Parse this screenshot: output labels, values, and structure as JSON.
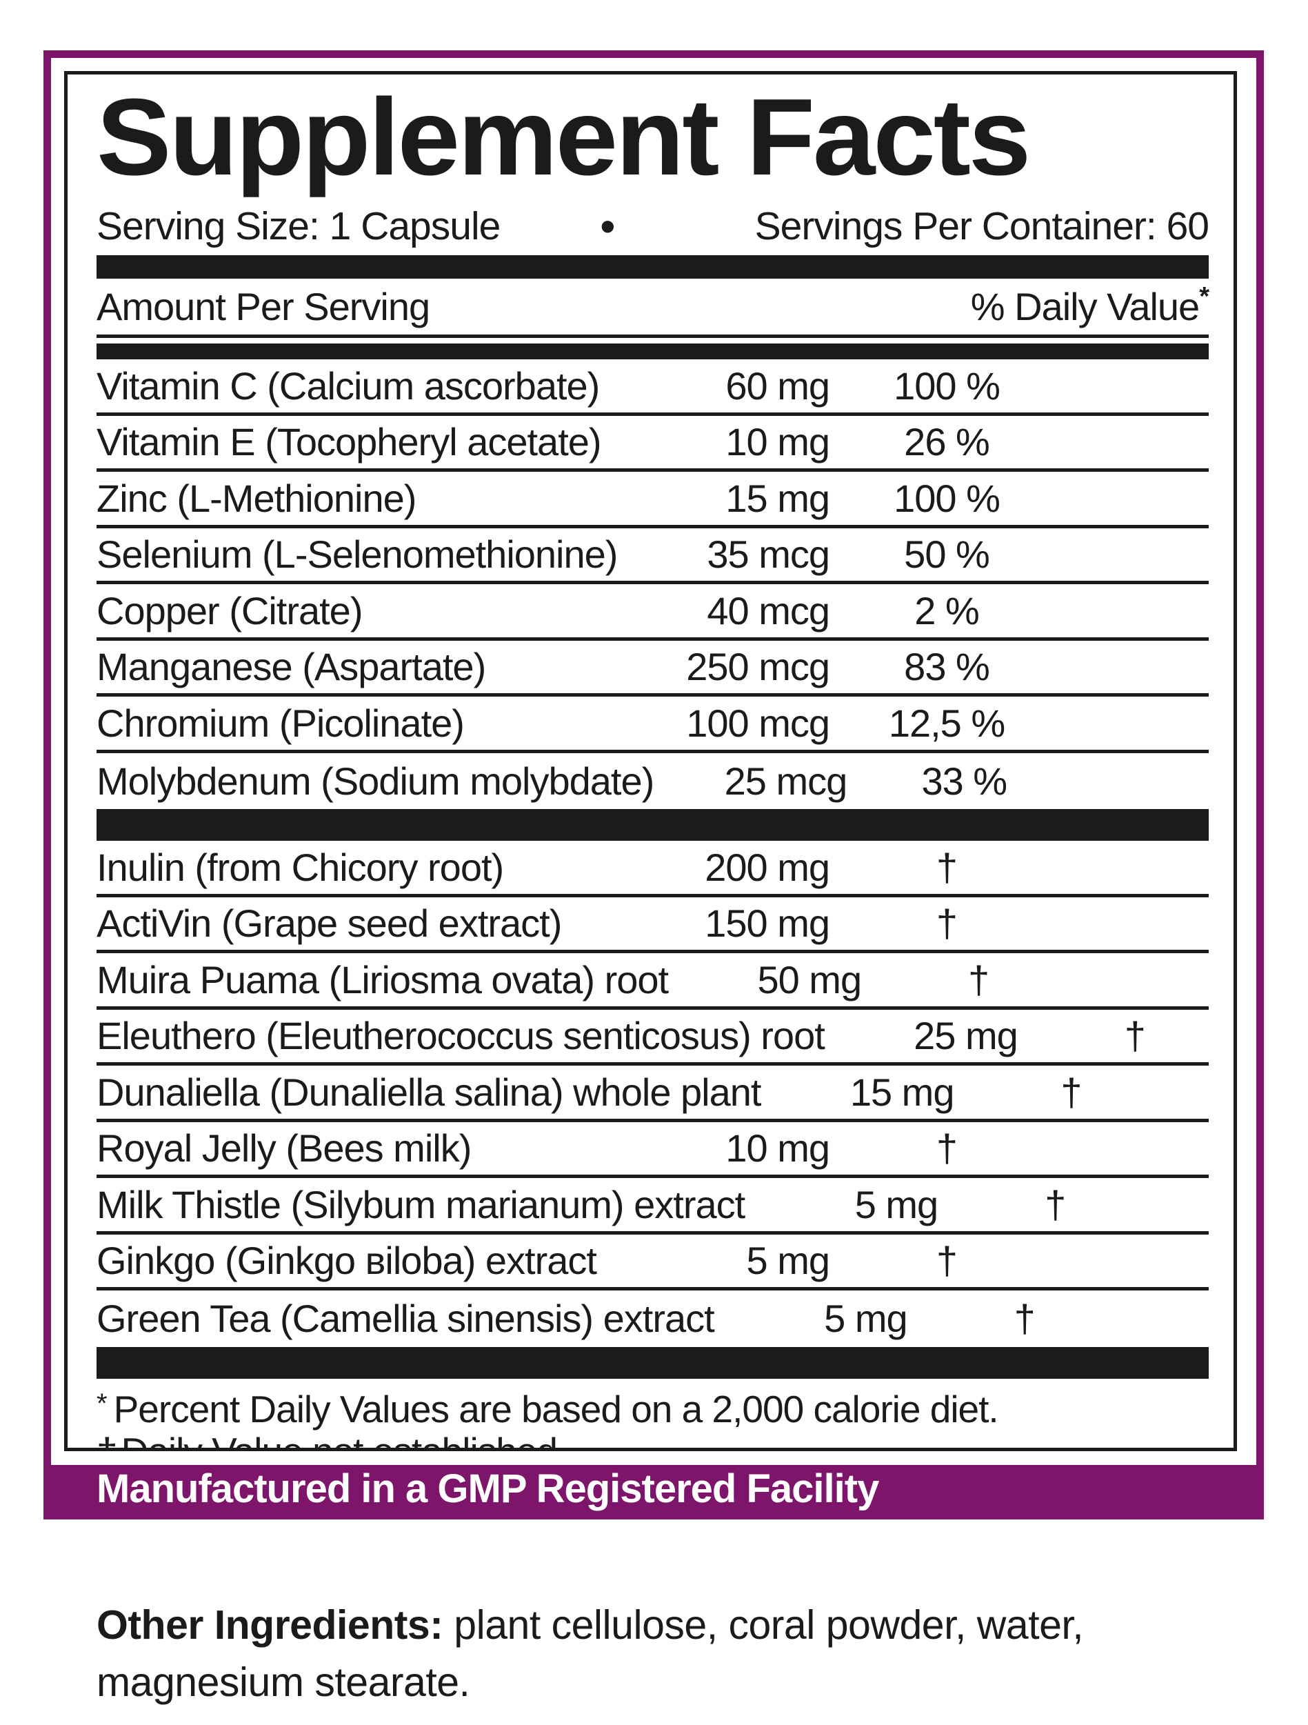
{
  "label": {
    "title": "Supplement Facts",
    "serving_size": "Serving Size: 1 Capsule",
    "bullet": "•",
    "servings_per_container": "Servings Per Container: 60",
    "header": {
      "amount_per_serving": "Amount Per Serving",
      "daily_value": "% Daily Value",
      "daily_value_footnote_symbol": "*"
    },
    "nutrients": [
      {
        "name": "Vitamin C (Calcium ascorbate)",
        "amount": "60 mg",
        "dv": "100 %"
      },
      {
        "name": "Vitamin E (Tocopheryl acetate)",
        "amount": "10 mg",
        "dv": "26 %"
      },
      {
        "name": "Zinc (L-Methionine)",
        "amount": "15 mg",
        "dv": "100 %"
      },
      {
        "name": "Selenium (L-Selenomethionine)",
        "amount": "35 mcg",
        "dv": "50 %"
      },
      {
        "name": "Copper (Citrate)",
        "amount": "40 mcg",
        "dv": "2 %"
      },
      {
        "name": "Manganese (Aspartate)",
        "amount": "250 mcg",
        "dv": "83 %"
      },
      {
        "name": "Chromium (Picolinate)",
        "amount": "100 mcg",
        "dv": "12,5 %"
      },
      {
        "name": "Molybdenum (Sodium molybdate)",
        "amount": "25 mcg",
        "dv": "33 %"
      }
    ],
    "botanicals": [
      {
        "name": "Inulin (from Chicory root)",
        "amount": "200 mg",
        "dv": "†"
      },
      {
        "name": "ActiVin (Grape seed extract)",
        "amount": "150 mg",
        "dv": "†"
      },
      {
        "name": "Muira Puama (Liriosma ovata) root",
        "amount": "50 mg",
        "dv": "†"
      },
      {
        "name": "Eleuthero (Eleutherococcus senticosus) root",
        "amount": "25 mg",
        "dv": "†"
      },
      {
        "name": "Dunaliella (Dunaliella salina) whole plant",
        "amount": "15 mg",
        "dv": "†"
      },
      {
        "name": "Royal Jelly (Bees milk)",
        "amount": "10 mg",
        "dv": "†"
      },
      {
        "name": "Milk Thistle (Silybum marianum) extract",
        "amount": "5 mg",
        "dv": "†"
      },
      {
        "name": "Ginkgo (Ginkgo вiloba) extract",
        "amount": "5 mg",
        "dv": "†"
      },
      {
        "name": "Green Tea (Camellia sinensis) extract",
        "amount": "5 mg",
        "dv": "†"
      }
    ],
    "footnotes": [
      {
        "symbol": "*",
        "text": "Percent Daily Values are based on a 2,000 calorie diet."
      },
      {
        "symbol": "†",
        "text": "Daily Value not established."
      }
    ],
    "gmp_banner": "Manufactured in a GMP Registered Facility",
    "other_ingredients": {
      "label": "Other Ingredients:",
      "text": " plant cellulose, coral powder, water, magnesium stearate."
    },
    "colors": {
      "accent_purple": "#7D156B",
      "ink_black": "#1C1A1B"
    }
  }
}
